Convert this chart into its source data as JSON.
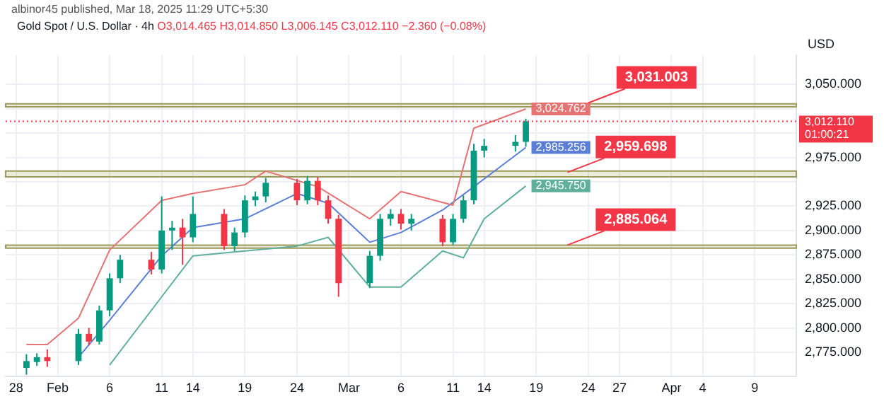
{
  "chart_data": {
    "type": "candlestick",
    "title": "Gold Spot / U.S. Dollar · 4h",
    "subtitle": "albinor45 published, Mar 18, 2025 11:29 UTC+5:30",
    "ylabel": "USD",
    "x": [
      "2025-01-29",
      "2025-01-30",
      "2025-01-31",
      "2025-02-03",
      "2025-02-04",
      "2025-02-05",
      "2025-02-06",
      "2025-02-07",
      "2025-02-10",
      "2025-02-11",
      "2025-02-12",
      "2025-02-13",
      "2025-02-14",
      "2025-02-17",
      "2025-02-18",
      "2025-02-19",
      "2025-02-20",
      "2025-02-21",
      "2025-02-24",
      "2025-02-25",
      "2025-02-26",
      "2025-02-27",
      "2025-02-28",
      "2025-03-03",
      "2025-03-04",
      "2025-03-05",
      "2025-03-06",
      "2025-03-07",
      "2025-03-10",
      "2025-03-11",
      "2025-03-12",
      "2025-03-13",
      "2025-03-14",
      "2025-03-17",
      "2025-03-18"
    ],
    "ohlc": [
      [
        2759,
        2773,
        2752,
        2766
      ],
      [
        2765,
        2774,
        2761,
        2770
      ],
      [
        2770,
        2778,
        2760,
        2766
      ],
      [
        2766,
        2799,
        2762,
        2794
      ],
      [
        2794,
        2800,
        2782,
        2786
      ],
      [
        2786,
        2823,
        2783,
        2818
      ],
      [
        2818,
        2856,
        2812,
        2851
      ],
      [
        2851,
        2875,
        2846,
        2870
      ],
      [
        2870,
        2878,
        2855,
        2860
      ],
      [
        2860,
        2935,
        2856,
        2900
      ],
      [
        2900,
        2910,
        2880,
        2903
      ],
      [
        2903,
        2912,
        2865,
        2893
      ],
      [
        2893,
        2935,
        2888,
        2917
      ],
      [
        2917,
        2922,
        2880,
        2884
      ],
      [
        2884,
        2903,
        2879,
        2898
      ],
      [
        2898,
        2936,
        2893,
        2931
      ],
      [
        2931,
        2940,
        2925,
        2935
      ],
      [
        2935,
        2954,
        2929,
        2949
      ],
      [
        2949,
        2953,
        2926,
        2931
      ],
      [
        2931,
        2956,
        2927,
        2951
      ],
      [
        2951,
        2955,
        2926,
        2931
      ],
      [
        2931,
        2936,
        2907,
        2912
      ],
      [
        2912,
        2916,
        2832,
        2846
      ],
      [
        2846,
        2879,
        2841,
        2874
      ],
      [
        2874,
        2917,
        2869,
        2912
      ],
      [
        2912,
        2922,
        2905,
        2917
      ],
      [
        2917,
        2922,
        2901,
        2907
      ],
      [
        2907,
        2917,
        2900,
        2912
      ],
      [
        2912,
        2916,
        2884,
        2888
      ],
      [
        2888,
        2917,
        2885,
        2912
      ],
      [
        2912,
        2936,
        2908,
        2931
      ],
      [
        2931,
        2989,
        2927,
        2982
      ],
      [
        2982,
        2994,
        2975,
        2987
      ],
      [
        2987,
        2998,
        2981,
        2991
      ],
      [
        2991,
        3014.85,
        2986,
        3012.11
      ]
    ],
    "colors": [
      "#089981",
      "#089981",
      "#f23645",
      "#089981",
      "#f23645",
      "#089981",
      "#089981",
      "#089981",
      "#f23645",
      "#089981",
      "#089981",
      "#f23645",
      "#089981",
      "#f23645",
      "#089981",
      "#089981",
      "#089981",
      "#089981",
      "#f23645",
      "#089981",
      "#f23645",
      "#f23645",
      "#f23645",
      "#089981",
      "#089981",
      "#089981",
      "#f23645",
      "#089981",
      "#f23645",
      "#089981",
      "#089981",
      "#089981",
      "#089981",
      "#089981",
      "#089981"
    ],
    "series": [
      {
        "type": "line",
        "color": "#e57373",
        "x": [
          "2025-01-29",
          "2025-01-31",
          "2025-02-03",
          "2025-02-06",
          "2025-02-11",
          "2025-02-14",
          "2025-02-19",
          "2025-02-21",
          "2025-02-26",
          "2025-03-03",
          "2025-03-06",
          "2025-03-11",
          "2025-03-13",
          "2025-03-18"
        ],
        "values": [
          2783,
          2783,
          2810,
          2880,
          2931,
          2938,
          2947,
          2961,
          2945,
          2912,
          2940,
          2926,
          3005,
          3024.762
        ],
        "value_labels": [
          null,
          null,
          null,
          null,
          null,
          null,
          null,
          null,
          null,
          null,
          null,
          null,
          null,
          "3,024.762"
        ]
      },
      {
        "type": "line",
        "color": "#5b7fd6",
        "x": [
          "2025-02-03",
          "2025-02-06",
          "2025-02-11",
          "2025-02-14",
          "2025-02-19",
          "2025-02-24",
          "2025-02-27",
          "2025-03-03",
          "2025-03-06",
          "2025-03-10",
          "2025-03-13",
          "2025-03-18"
        ],
        "values": [
          2770,
          2808,
          2874,
          2903,
          2912,
          2938,
          2928,
          2888,
          2898,
          2921,
          2945,
          2985.256
        ],
        "value_labels": [
          null,
          null,
          null,
          null,
          null,
          null,
          null,
          null,
          null,
          null,
          null,
          "2,985.256"
        ]
      },
      {
        "type": "line",
        "color": "#5faf9c",
        "x": [
          "2025-02-06",
          "2025-02-11",
          "2025-02-14",
          "2025-02-19",
          "2025-02-24",
          "2025-02-27",
          "2025-03-03",
          "2025-03-06",
          "2025-03-10",
          "2025-03-12",
          "2025-03-14",
          "2025-03-18"
        ],
        "values": [
          2762,
          2832,
          2874,
          2879,
          2884,
          2893,
          2842,
          2842,
          2879,
          2872,
          2912,
          2945.75
        ],
        "value_labels": [
          null,
          null,
          null,
          null,
          null,
          null,
          null,
          null,
          null,
          null,
          null,
          "2,945.750"
        ]
      }
    ],
    "bands": [
      {
        "axis": "y",
        "from": 3027,
        "to": 3030,
        "color": "#9c9a5a"
      },
      {
        "axis": "y",
        "from": 2955,
        "to": 2961,
        "color": "#9c9a5a"
      },
      {
        "axis": "y",
        "from": 2882,
        "to": 2885,
        "color": "#9c9a5a"
      }
    ],
    "ref_lines": [
      {
        "axis": "y",
        "value": 3012.11,
        "label": "3,012.110\n01:00:21",
        "color": "#f23645",
        "line_style": "dotted"
      }
    ],
    "annotations": [
      "O3,014.465 H3,014.850 L3,006.145 C3,012.110 −2.360 (−0.08%)",
      {
        "text": "3,031.003",
        "x": "2025-03-24",
        "y": 3031.003
      },
      {
        "text": "2,959.698",
        "x": "2025-03-22",
        "y": 2959.698
      },
      {
        "text": "2,885.064",
        "x": "2025-03-22",
        "y": 2885.064
      }
    ],
    "xlim": [
      "2025-01-27",
      "2025-04-13"
    ],
    "xticks": [
      {
        "value": "2025-01-28",
        "label": "28"
      },
      {
        "value": "2025-02-01",
        "label": "Feb"
      },
      {
        "value": "2025-02-06",
        "label": "6"
      },
      {
        "value": "2025-02-11",
        "label": "11"
      },
      {
        "value": "2025-02-14",
        "label": "14"
      },
      {
        "value": "2025-02-19",
        "label": "19"
      },
      {
        "value": "2025-02-24",
        "label": "24"
      },
      {
        "value": "2025-03-01",
        "label": "Mar"
      },
      {
        "value": "2025-03-06",
        "label": "6"
      },
      {
        "value": "2025-03-11",
        "label": "11"
      },
      {
        "value": "2025-03-14",
        "label": "14"
      },
      {
        "value": "2025-03-19",
        "label": "19"
      },
      {
        "value": "2025-03-24",
        "label": "24"
      },
      {
        "value": "2025-03-27",
        "label": "27"
      },
      {
        "value": "2025-04-01",
        "label": "Apr"
      },
      {
        "value": "2025-04-04",
        "label": "4"
      },
      {
        "value": "2025-04-09",
        "label": "9"
      }
    ],
    "ylim": [
      2750,
      3080
    ],
    "yticks": [
      {
        "value": 2775,
        "label": "2,775.000"
      },
      {
        "value": 2800,
        "label": "2,800.000"
      },
      {
        "value": 2825,
        "label": "2,825.000"
      },
      {
        "value": 2850,
        "label": "2,850.000"
      },
      {
        "value": 2875,
        "label": "2,875.000"
      },
      {
        "value": 2900,
        "label": "2,900.000"
      },
      {
        "value": 2925,
        "label": "2,925.000"
      },
      {
        "value": 2950,
        "label": null
      },
      {
        "value": 2975,
        "label": "2,975.000"
      },
      {
        "value": 3000,
        "label": null
      },
      {
        "value": 3025,
        "label": null
      },
      {
        "value": 3050,
        "label": "3,050.000"
      }
    ],
    "grid": true
  }
}
